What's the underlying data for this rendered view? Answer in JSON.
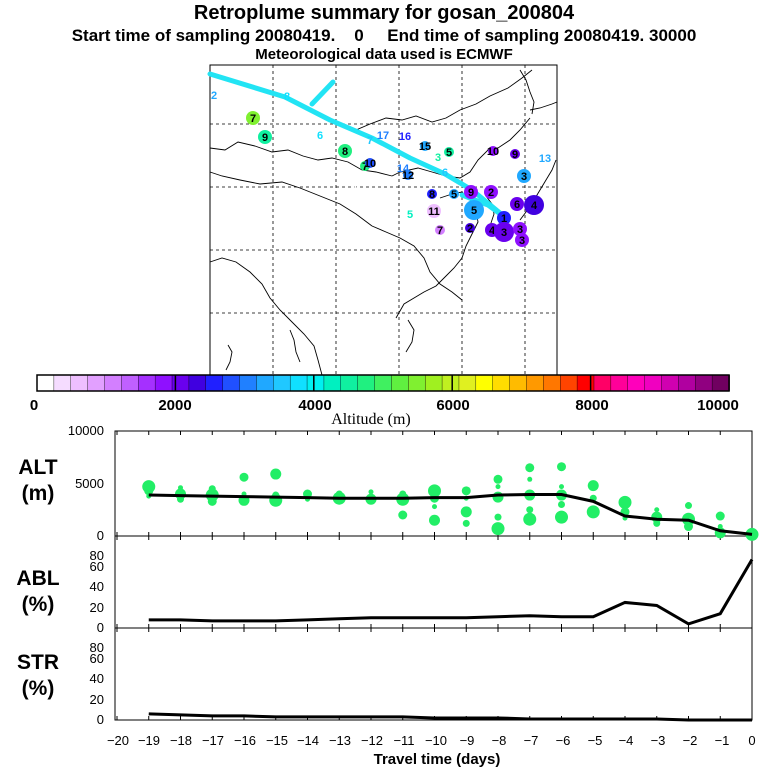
{
  "title": "Retroplume summary for gosan_200804",
  "subtitle_start": "Start time of sampling 20080419.    0",
  "subtitle_end": "End time of sampling 20080419. 30000",
  "met_note": "Meteorological data used is ECMWF",
  "colorbar": {
    "label": "Altitude  (m)",
    "ticks": [
      "0",
      "2000",
      "4000",
      "6000",
      "8000",
      "10000"
    ],
    "range": [
      0,
      10000
    ],
    "colors": [
      "#ffffff",
      "#f5dcff",
      "#eebfff",
      "#e2a0ff",
      "#d37fff",
      "#c060ff",
      "#a530ff",
      "#8f10ff",
      "#6a00ee",
      "#4000e0",
      "#2020ff",
      "#2050ff",
      "#2080ff",
      "#20a8ff",
      "#20c8ff",
      "#10e0ff",
      "#00f0f0",
      "#00f0c0",
      "#10f0a0",
      "#20f080",
      "#40f060",
      "#60f040",
      "#80f030",
      "#a0f020",
      "#c0f020",
      "#e0f020",
      "#ffff00",
      "#ffdd00",
      "#ffbb00",
      "#ff9900",
      "#ff7700",
      "#ff4400",
      "#ff0000",
      "#ff0066",
      "#ff0099",
      "#ff00bb",
      "#f000c0",
      "#d000b0",
      "#b000a0",
      "#900080",
      "#700060"
    ]
  },
  "map": {
    "markers": [
      {
        "label": "2",
        "alt": 3300,
        "size": 0
      },
      {
        "label": "8",
        "alt": 3800,
        "size": 0
      },
      {
        "label": "7",
        "alt": 5600,
        "size": 2
      },
      {
        "label": "9",
        "alt": 4600,
        "size": 2
      },
      {
        "label": "6",
        "alt": 3800,
        "size": 0
      },
      {
        "label": "7",
        "alt": 3500,
        "size": 0
      },
      {
        "label": "17",
        "alt": 3000,
        "size": 0
      },
      {
        "label": "16",
        "alt": 2600,
        "size": 0
      },
      {
        "label": "8",
        "alt": 4800,
        "size": 2
      },
      {
        "label": "7",
        "alt": 4700,
        "size": 1
      },
      {
        "label": "10",
        "alt": 2800,
        "size": 1
      },
      {
        "label": "15",
        "alt": 3300,
        "size": 1
      },
      {
        "label": "5",
        "alt": 4600,
        "size": 1
      },
      {
        "label": "3",
        "alt": 4400,
        "size": 0
      },
      {
        "label": "10",
        "alt": 1800,
        "size": 1
      },
      {
        "label": "9",
        "alt": 1900,
        "size": 1
      },
      {
        "label": "13",
        "alt": 3300,
        "size": 0
      },
      {
        "label": "14",
        "alt": 3000,
        "size": 0
      },
      {
        "label": "12",
        "alt": 3000,
        "size": 1
      },
      {
        "label": "6",
        "alt": 3600,
        "size": 0
      },
      {
        "label": "8",
        "alt": 2400,
        "size": 1
      },
      {
        "label": "5",
        "alt": 3200,
        "size": 1
      },
      {
        "label": "6",
        "alt": 0,
        "size": 0
      },
      {
        "label": "9",
        "alt": 1800,
        "size": 2
      },
      {
        "label": "2",
        "alt": 1700,
        "size": 2
      },
      {
        "label": "3",
        "alt": 3300,
        "size": 2
      },
      {
        "label": "5",
        "alt": 3300,
        "size": 3
      },
      {
        "label": "6",
        "alt": 2000,
        "size": 2
      },
      {
        "label": "4",
        "alt": 2200,
        "size": 3
      },
      {
        "label": "1",
        "alt": 2600,
        "size": 2
      },
      {
        "label": "5",
        "alt": 4200,
        "size": 0
      },
      {
        "label": "11",
        "alt": 500,
        "size": 2
      },
      {
        "label": "7",
        "alt": 1000,
        "size": 1
      },
      {
        "label": "2",
        "alt": 2300,
        "size": 1
      },
      {
        "label": "4",
        "alt": 2000,
        "size": 2
      },
      {
        "label": "3",
        "alt": 1900,
        "size": 3
      },
      {
        "label": "3",
        "alt": 1800,
        "size": 2
      },
      {
        "label": "3",
        "alt": 1700,
        "size": 2
      }
    ]
  },
  "chart_data": [
    {
      "type": "scatter",
      "name": "ALT",
      "ylabel_line1": "ALT",
      "ylabel_line2": "(m)",
      "ylim": [
        0,
        10000
      ],
      "yticks": [
        "0",
        "5000",
        "10000"
      ],
      "median_line": {
        "x": [
          -19,
          -18,
          -17,
          -16,
          -15,
          -14,
          -13,
          -12,
          -11,
          -10,
          -9,
          -8,
          -7,
          -6,
          -5,
          -4,
          -3,
          -2,
          -1,
          0
        ],
        "y": [
          3900,
          3850,
          3800,
          3750,
          3700,
          3650,
          3600,
          3600,
          3600,
          3650,
          3650,
          3900,
          3950,
          3950,
          3300,
          1900,
          1600,
          1500,
          500,
          150
        ]
      },
      "particles": {
        "x": [
          -19,
          -19,
          -19,
          -18,
          -18,
          -18,
          -17,
          -17,
          -17,
          -16,
          -16,
          -16,
          -15,
          -15,
          -15,
          -14,
          -14,
          -13,
          -13,
          -12,
          -12,
          -11,
          -11,
          -11,
          -10,
          -10,
          -10,
          -10,
          -9,
          -9,
          -9,
          -9,
          -8,
          -8,
          -8,
          -8,
          -8,
          -7,
          -7,
          -7,
          -7,
          -7,
          -6,
          -6,
          -6,
          -6,
          -6,
          -5,
          -5,
          -5,
          -4,
          -4,
          -4,
          -3,
          -3,
          -3,
          -2,
          -2,
          -2,
          -1,
          -1,
          -1,
          0
        ],
        "y": [
          3800,
          4300,
          4700,
          3500,
          4000,
          4600,
          3300,
          3900,
          4500,
          3400,
          4000,
          5600,
          3400,
          3900,
          5900,
          3500,
          4000,
          3600,
          4000,
          3500,
          4200,
          2000,
          3500,
          4000,
          1500,
          2800,
          3600,
          4300,
          1200,
          2300,
          3600,
          4300,
          700,
          1800,
          3700,
          4700,
          5400,
          1600,
          2500,
          3900,
          5400,
          6500,
          1800,
          3000,
          3900,
          4700,
          6600,
          2300,
          3600,
          4800,
          1700,
          2300,
          3200,
          1200,
          1800,
          2500,
          900,
          1600,
          2900,
          300,
          900,
          1900,
          150
        ]
      },
      "xlim": [
        -20,
        0
      ]
    },
    {
      "type": "line",
      "name": "ABL",
      "ylabel_line1": "ABL",
      "ylabel_line2": "(%)",
      "ylim": [
        0,
        90
      ],
      "yticks": [
        "0",
        "20",
        "40",
        "60",
        "80"
      ],
      "x": [
        -19,
        -18,
        -17,
        -16,
        -15,
        -14,
        -13,
        -12,
        -11,
        -10,
        -9,
        -8,
        -7,
        -6,
        -5,
        -4,
        -3,
        -2,
        -1,
        0
      ],
      "y": [
        8,
        8,
        7,
        7,
        7,
        8,
        9,
        10,
        10,
        10,
        10,
        11,
        12,
        11,
        11,
        25,
        22,
        4,
        14,
        67
      ],
      "xlim": [
        -20,
        0
      ]
    },
    {
      "type": "line",
      "name": "STR",
      "ylabel_line1": "STR",
      "ylabel_line2": "(%)",
      "ylim": [
        0,
        90
      ],
      "yticks": [
        "0",
        "20",
        "40",
        "60",
        "80"
      ],
      "x": [
        -19,
        -18,
        -17,
        -16,
        -15,
        -14,
        -13,
        -12,
        -11,
        -10,
        -9,
        -8,
        -7,
        -6,
        -5,
        -4,
        -3,
        -2,
        -1,
        0
      ],
      "y": [
        6,
        5,
        4,
        4,
        3,
        3,
        3,
        3,
        3,
        2,
        2,
        2,
        1,
        1,
        1,
        1,
        1,
        0,
        0,
        0
      ],
      "xlim": [
        -20,
        0
      ],
      "xlabel": "Travel time (days)",
      "xticks": [
        "−20",
        "−19",
        "−18",
        "−17",
        "−16",
        "−15",
        "−14",
        "−13",
        "−12",
        "−11",
        "−10",
        "−9",
        "−8",
        "−7",
        "−6",
        "−5",
        "−4",
        "−3",
        "−2",
        "−1",
        "0"
      ]
    }
  ]
}
